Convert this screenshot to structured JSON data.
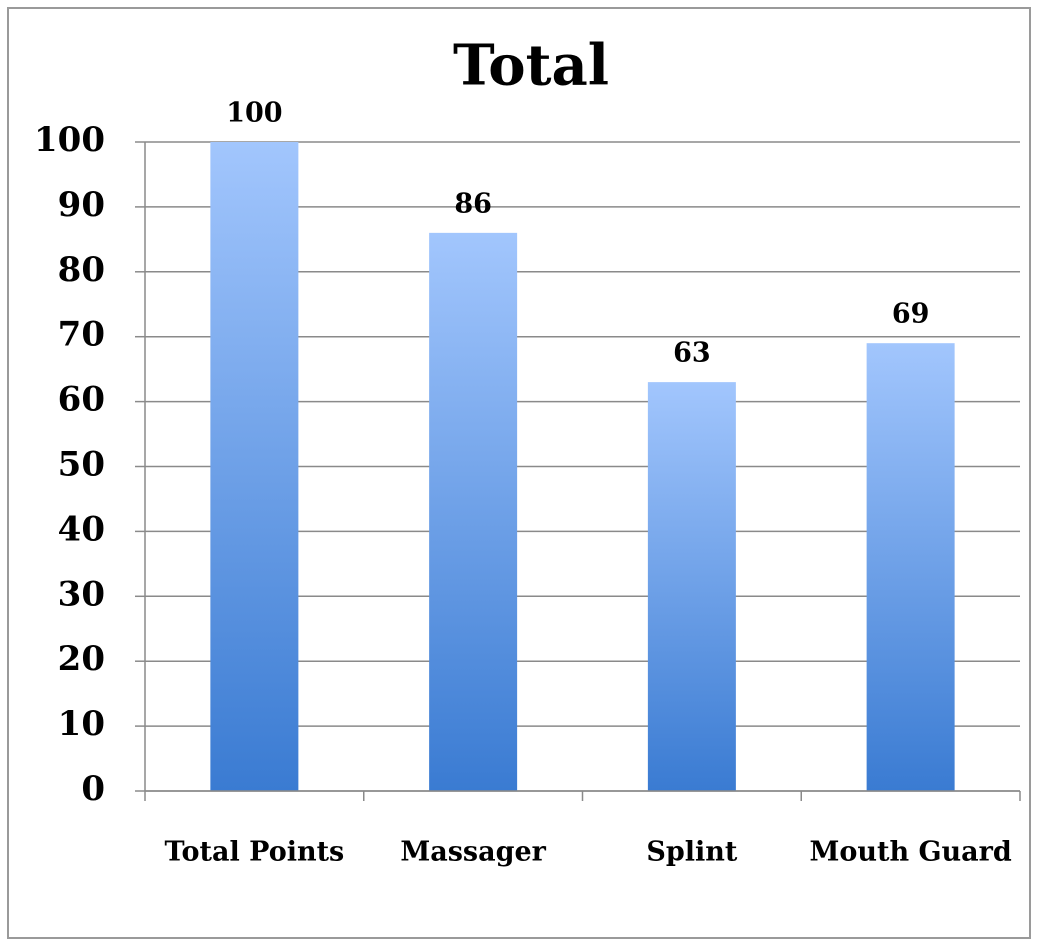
{
  "chart_data": {
    "type": "bar",
    "title": "Total",
    "categories": [
      "Total Points",
      "Massager",
      "Splint",
      "Mouth Guard"
    ],
    "values": [
      100,
      86,
      63,
      69
    ],
    "gradient": [
      "#a2c6fd",
      "#3a7bd2"
    ],
    "ylim": [
      0,
      100
    ],
    "yticks": [
      0,
      10,
      20,
      30,
      40,
      50,
      60,
      70,
      80,
      90,
      100
    ],
    "grid": true
  }
}
